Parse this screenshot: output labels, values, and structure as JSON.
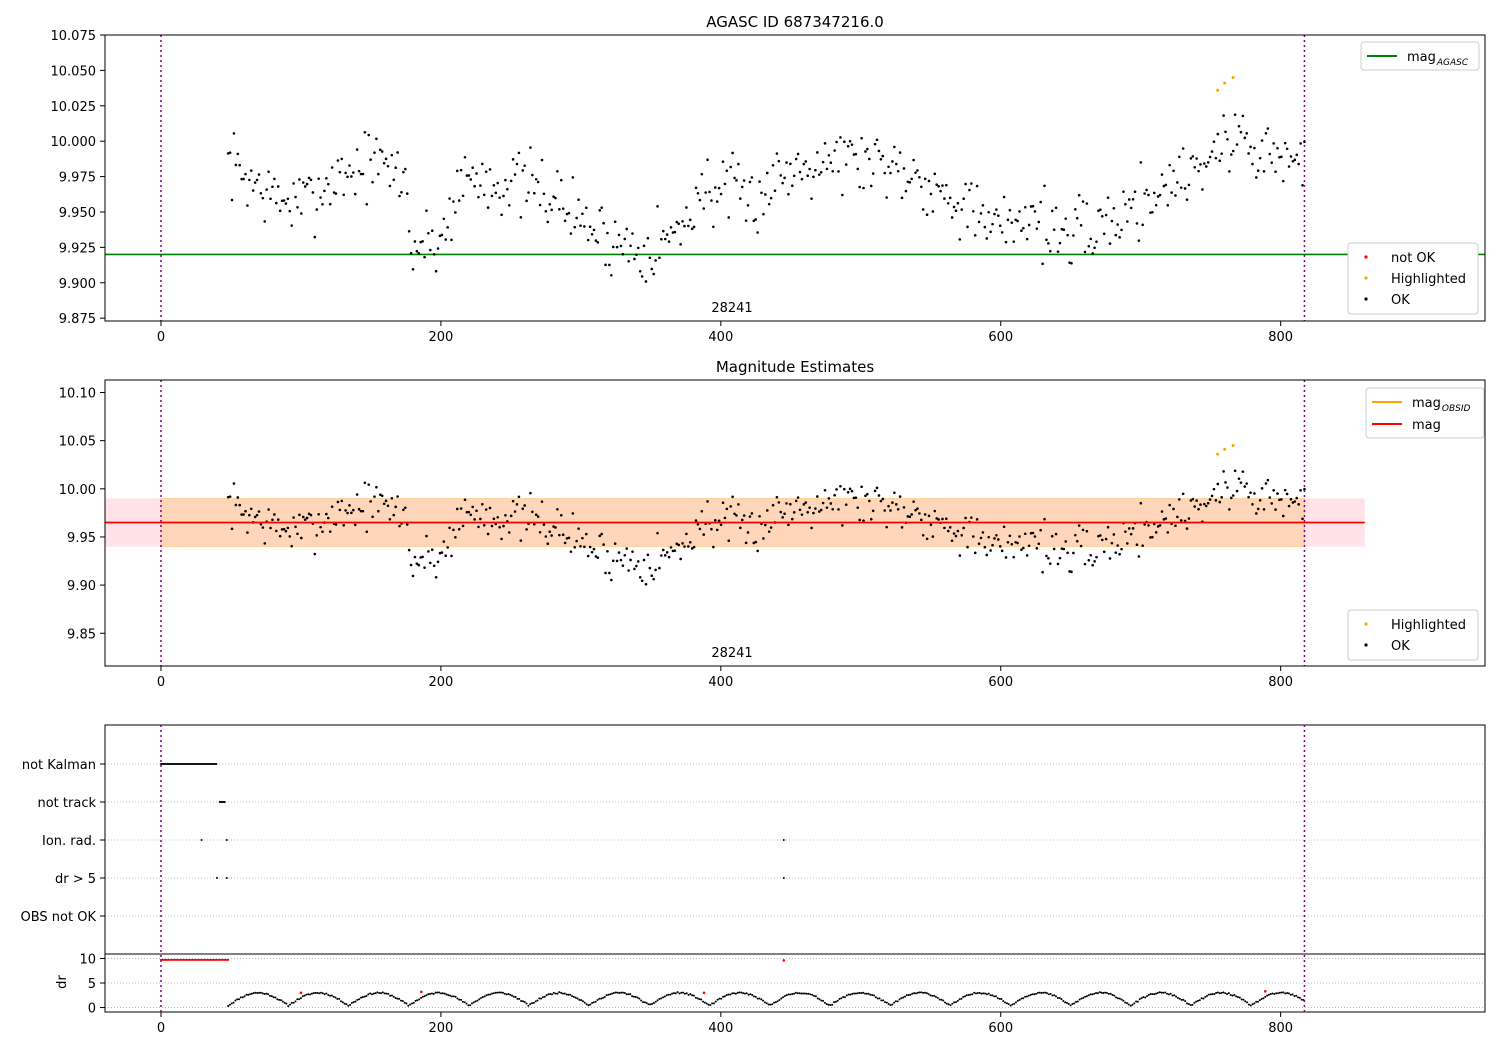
{
  "chart_data": [
    {
      "type": "scatter",
      "title": "AGASC ID 687347216.0",
      "x_ticks": [
        0,
        200,
        400,
        600,
        800
      ],
      "xlim": [
        -40,
        946
      ],
      "ylim": [
        9.873,
        10.075
      ],
      "y_ticks": [
        "9.875",
        "9.900",
        "9.925",
        "9.950",
        "9.975",
        "10.000",
        "10.025",
        "10.050",
        "10.075"
      ],
      "y_tick_values": [
        9.875,
        9.9,
        9.925,
        9.95,
        9.975,
        10.0,
        10.025,
        10.05,
        10.075
      ],
      "annotation": "28241",
      "annotation_x": 410,
      "vlines": [
        0,
        817
      ],
      "mag_agasc": 9.92,
      "legend_lines": [
        {
          "label": "mag",
          "sub": "AGASC",
          "color": "#008000"
        }
      ],
      "legend_markers": [
        {
          "label": "not OK",
          "color": "#ff0000"
        },
        {
          "label": "Highlighted",
          "color": "#ffa500"
        },
        {
          "label": "OK",
          "color": "#000000"
        }
      ],
      "series_ok": {
        "x_start": 48,
        "x_end": 817,
        "n": 560,
        "seed": 7
      },
      "highlighted": [
        [
          755,
          10.036
        ],
        [
          760,
          10.041
        ],
        [
          766,
          10.045
        ]
      ]
    },
    {
      "type": "scatter",
      "title": "Magnitude Estimates",
      "x_ticks": [
        0,
        200,
        400,
        600,
        800
      ],
      "xlim": [
        -40,
        946
      ],
      "ylim": [
        9.816,
        10.113
      ],
      "y_ticks": [
        "9.85",
        "9.90",
        "9.95",
        "10.00",
        "10.05",
        "10.10"
      ],
      "y_tick_values": [
        9.85,
        9.9,
        9.95,
        10.0,
        10.05,
        10.1
      ],
      "annotation": "28241",
      "annotation_x": 410,
      "vlines": [
        0,
        817
      ],
      "mag": 9.965,
      "band_pink": [
        9.94,
        9.99
      ],
      "band_orange": [
        9.94,
        9.99
      ],
      "band_x_end": 860,
      "legend_lines": [
        {
          "label": "mag",
          "sub": "OBSID",
          "color": "#ffa500"
        },
        {
          "label": "mag",
          "sub": "",
          "color": "#ff0000"
        }
      ],
      "legend_markers": [
        {
          "label": "Highlighted",
          "color": "#ffa500"
        },
        {
          "label": "OK",
          "color": "#000000"
        }
      ]
    },
    {
      "type": "scatter",
      "title": "",
      "flag_rows": [
        "not Kalman",
        "not track",
        "Ion. rad.",
        "dr > 5",
        "OBS not OK"
      ],
      "flags": {
        "not Kalman": {
          "ranges": [
            [
              0,
              40
            ]
          ]
        },
        "not track": {
          "ranges": [
            [
              42,
              46
            ]
          ]
        },
        "Ion. rad.": {
          "points": [
            29,
            47,
            445
          ]
        },
        "dr > 5": {
          "points": [
            40,
            47,
            445
          ]
        },
        "OBS not OK": {
          "points": []
        }
      },
      "dr_ylabel": "dr",
      "dr_ticks": [
        0,
        5,
        10
      ],
      "dr_ylim": [
        -0.5,
        10.5
      ],
      "dr_red_points": [
        [
          100,
          3.0
        ],
        [
          186,
          3.2
        ],
        [
          388,
          3.0
        ],
        [
          445,
          9.6
        ],
        [
          789,
          3.3
        ]
      ],
      "dr_capped_range": [
        0,
        48
      ],
      "x_ticks": [
        0,
        200,
        400,
        600,
        800
      ],
      "xlim": [
        -40,
        946
      ],
      "vlines": [
        0,
        817
      ]
    }
  ]
}
